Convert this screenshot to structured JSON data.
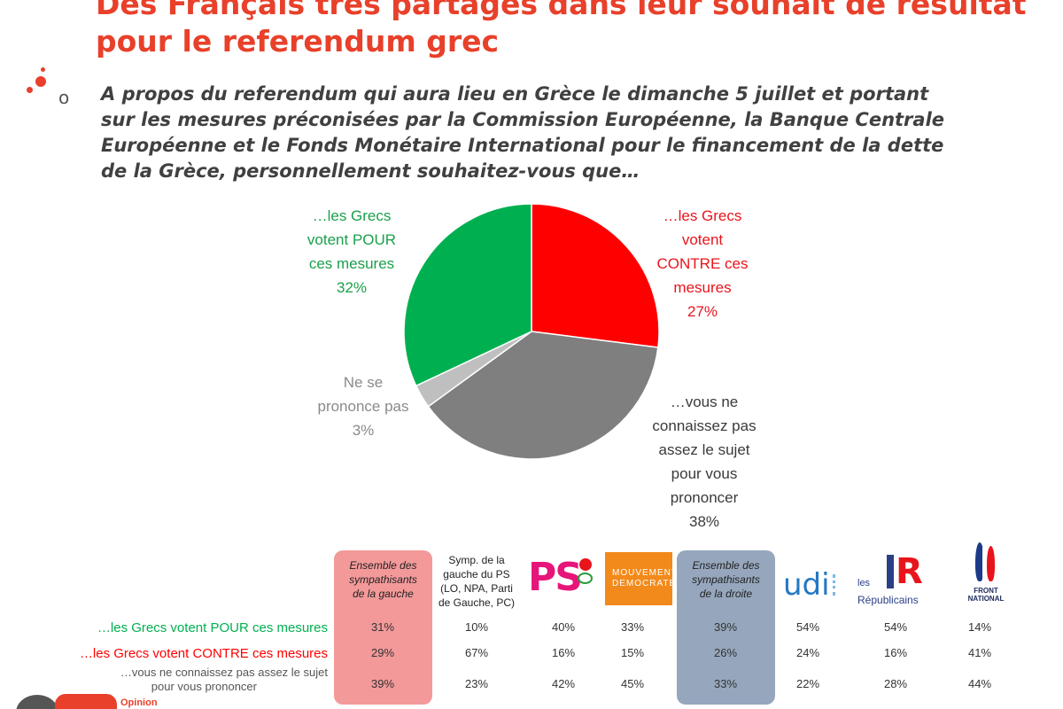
{
  "title": {
    "line1": "Des Français très partagés dans leur souhait de résultat",
    "line2": "pour le referendum grec"
  },
  "question": {
    "bullet": "o",
    "lines": [
      "A propos du referendum qui aura lieu en Grèce le dimanche 5 juillet et portant",
      "sur les mesures préconisées par la Commission Européenne, la Banque Centrale",
      "Européenne et le Fonds Monétaire International pour le financement de la dette",
      "de la Grèce, personnellement souhaitez-vous que…"
    ]
  },
  "chart_data": {
    "type": "pie",
    "start": "12 o'clock",
    "direction": "clockwise",
    "slices": [
      {
        "label": [
          "…les Grecs",
          "votent",
          "CONTRE ces",
          "mesures"
        ],
        "value": 27,
        "value_label": "27%",
        "color": "#ff0000"
      },
      {
        "label": [
          "…vous ne",
          "connaissez pas",
          "assez le sujet",
          "pour vous",
          "prononcer"
        ],
        "value": 38,
        "value_label": "38%",
        "color": "#7f7f7f"
      },
      {
        "label": [
          "Ne se",
          "prononce pas"
        ],
        "value": 3,
        "value_label": "3%",
        "color": "#bfbfbf"
      },
      {
        "label": [
          "…les Grecs",
          "votent POUR",
          "ces mesures"
        ],
        "value": 32,
        "value_label": "32%",
        "color": "#00b050"
      }
    ]
  },
  "table": {
    "columns": [
      {
        "lines": [
          "Ensemble des",
          "sympathisants",
          "de la gauche"
        ],
        "italic": true
      },
      {
        "lines": [
          "Symp. de la",
          "gauche du PS",
          "(LO, NPA, Parti",
          "de Gauche, PC)"
        ],
        "italic": false
      },
      {
        "logo": "ps-logo",
        "text": "PS"
      },
      {
        "logo": "modem-logo",
        "lines": [
          "MOUVEMENT",
          "DEMOCRATE"
        ]
      },
      {
        "lines": [
          "Ensemble des",
          "sympathisants",
          "de la droite"
        ],
        "italic": true
      },
      {
        "logo": "udi-logo",
        "text": "udi"
      },
      {
        "logo": "lr-logo",
        "lines": [
          "les",
          "Républicains"
        ],
        "mark": [
          "I",
          "R"
        ]
      },
      {
        "logo": "fn-logo",
        "lines": [
          "FRONT",
          "NATIONAL"
        ]
      }
    ],
    "rows": [
      {
        "label": "…les Grecs votent POUR ces mesures",
        "color": "#00b050",
        "values": [
          "31%",
          "10%",
          "40%",
          "33%",
          "39%",
          "54%",
          "54%",
          "14%"
        ]
      },
      {
        "label": "…les Grecs votent CONTRE ces mesures",
        "color": "#ff0000",
        "values": [
          "29%",
          "67%",
          "16%",
          "15%",
          "26%",
          "24%",
          "16%",
          "41%"
        ]
      },
      {
        "label_lines": [
          "…vous ne connaissez pas assez le sujet",
          "pour vous prononcer"
        ],
        "color": "#595959",
        "values": [
          "39%",
          "23%",
          "42%",
          "45%",
          "33%",
          "22%",
          "28%",
          "44%"
        ]
      }
    ]
  },
  "footer": {
    "text": "Opinion"
  },
  "colors": {
    "accent": "#e8402a",
    "left_highlight": "#f3999a",
    "right_highlight": "#96a7bd"
  }
}
